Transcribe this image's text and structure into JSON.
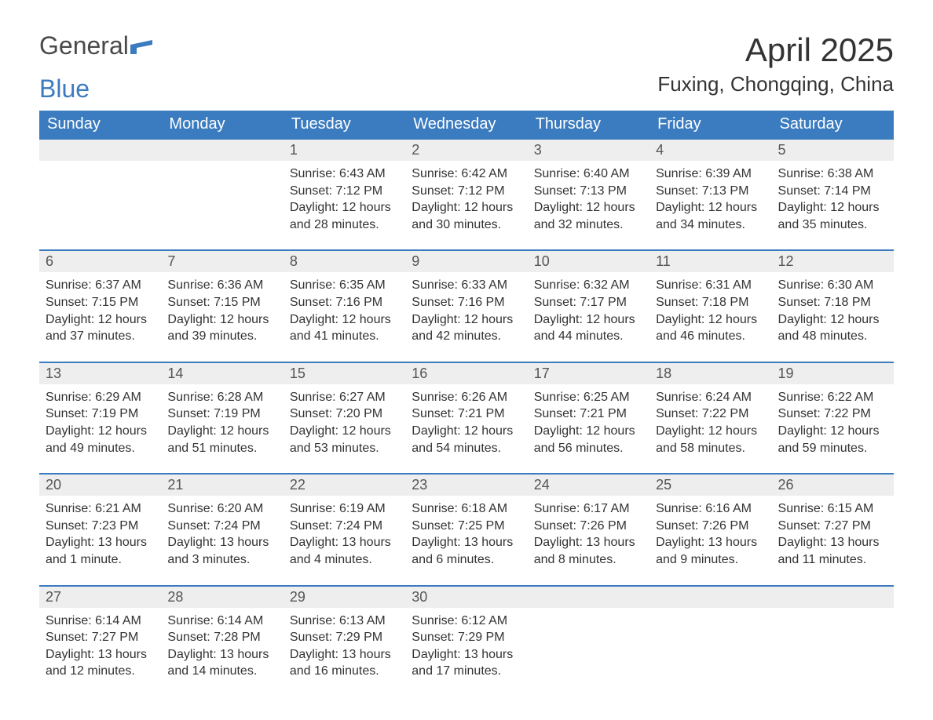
{
  "logo": {
    "text1": "General",
    "text2": "Blue",
    "shape_color": "#3b7bbf"
  },
  "header": {
    "month_title": "April 2025",
    "location": "Fuxing, Chongqing, China"
  },
  "colors": {
    "header_bg": "#3b7bbf",
    "header_fg": "#ffffff",
    "daynum_bg": "#eeeeee",
    "daynum_border": "#3b7bbf",
    "text": "#333333",
    "background": "#ffffff"
  },
  "typography": {
    "title_fontsize": 42,
    "location_fontsize": 26,
    "dayhead_fontsize": 20,
    "daynum_fontsize": 18,
    "body_fontsize": 16
  },
  "calendar": {
    "type": "table",
    "day_headers": [
      "Sunday",
      "Monday",
      "Tuesday",
      "Wednesday",
      "Thursday",
      "Friday",
      "Saturday"
    ],
    "weeks": [
      [
        null,
        null,
        {
          "n": "1",
          "sunrise": "Sunrise: 6:43 AM",
          "sunset": "Sunset: 7:12 PM",
          "daylight": "Daylight: 12 hours and 28 minutes."
        },
        {
          "n": "2",
          "sunrise": "Sunrise: 6:42 AM",
          "sunset": "Sunset: 7:12 PM",
          "daylight": "Daylight: 12 hours and 30 minutes."
        },
        {
          "n": "3",
          "sunrise": "Sunrise: 6:40 AM",
          "sunset": "Sunset: 7:13 PM",
          "daylight": "Daylight: 12 hours and 32 minutes."
        },
        {
          "n": "4",
          "sunrise": "Sunrise: 6:39 AM",
          "sunset": "Sunset: 7:13 PM",
          "daylight": "Daylight: 12 hours and 34 minutes."
        },
        {
          "n": "5",
          "sunrise": "Sunrise: 6:38 AM",
          "sunset": "Sunset: 7:14 PM",
          "daylight": "Daylight: 12 hours and 35 minutes."
        }
      ],
      [
        {
          "n": "6",
          "sunrise": "Sunrise: 6:37 AM",
          "sunset": "Sunset: 7:15 PM",
          "daylight": "Daylight: 12 hours and 37 minutes."
        },
        {
          "n": "7",
          "sunrise": "Sunrise: 6:36 AM",
          "sunset": "Sunset: 7:15 PM",
          "daylight": "Daylight: 12 hours and 39 minutes."
        },
        {
          "n": "8",
          "sunrise": "Sunrise: 6:35 AM",
          "sunset": "Sunset: 7:16 PM",
          "daylight": "Daylight: 12 hours and 41 minutes."
        },
        {
          "n": "9",
          "sunrise": "Sunrise: 6:33 AM",
          "sunset": "Sunset: 7:16 PM",
          "daylight": "Daylight: 12 hours and 42 minutes."
        },
        {
          "n": "10",
          "sunrise": "Sunrise: 6:32 AM",
          "sunset": "Sunset: 7:17 PM",
          "daylight": "Daylight: 12 hours and 44 minutes."
        },
        {
          "n": "11",
          "sunrise": "Sunrise: 6:31 AM",
          "sunset": "Sunset: 7:18 PM",
          "daylight": "Daylight: 12 hours and 46 minutes."
        },
        {
          "n": "12",
          "sunrise": "Sunrise: 6:30 AM",
          "sunset": "Sunset: 7:18 PM",
          "daylight": "Daylight: 12 hours and 48 minutes."
        }
      ],
      [
        {
          "n": "13",
          "sunrise": "Sunrise: 6:29 AM",
          "sunset": "Sunset: 7:19 PM",
          "daylight": "Daylight: 12 hours and 49 minutes."
        },
        {
          "n": "14",
          "sunrise": "Sunrise: 6:28 AM",
          "sunset": "Sunset: 7:19 PM",
          "daylight": "Daylight: 12 hours and 51 minutes."
        },
        {
          "n": "15",
          "sunrise": "Sunrise: 6:27 AM",
          "sunset": "Sunset: 7:20 PM",
          "daylight": "Daylight: 12 hours and 53 minutes."
        },
        {
          "n": "16",
          "sunrise": "Sunrise: 6:26 AM",
          "sunset": "Sunset: 7:21 PM",
          "daylight": "Daylight: 12 hours and 54 minutes."
        },
        {
          "n": "17",
          "sunrise": "Sunrise: 6:25 AM",
          "sunset": "Sunset: 7:21 PM",
          "daylight": "Daylight: 12 hours and 56 minutes."
        },
        {
          "n": "18",
          "sunrise": "Sunrise: 6:24 AM",
          "sunset": "Sunset: 7:22 PM",
          "daylight": "Daylight: 12 hours and 58 minutes."
        },
        {
          "n": "19",
          "sunrise": "Sunrise: 6:22 AM",
          "sunset": "Sunset: 7:22 PM",
          "daylight": "Daylight: 12 hours and 59 minutes."
        }
      ],
      [
        {
          "n": "20",
          "sunrise": "Sunrise: 6:21 AM",
          "sunset": "Sunset: 7:23 PM",
          "daylight": "Daylight: 13 hours and 1 minute."
        },
        {
          "n": "21",
          "sunrise": "Sunrise: 6:20 AM",
          "sunset": "Sunset: 7:24 PM",
          "daylight": "Daylight: 13 hours and 3 minutes."
        },
        {
          "n": "22",
          "sunrise": "Sunrise: 6:19 AM",
          "sunset": "Sunset: 7:24 PM",
          "daylight": "Daylight: 13 hours and 4 minutes."
        },
        {
          "n": "23",
          "sunrise": "Sunrise: 6:18 AM",
          "sunset": "Sunset: 7:25 PM",
          "daylight": "Daylight: 13 hours and 6 minutes."
        },
        {
          "n": "24",
          "sunrise": "Sunrise: 6:17 AM",
          "sunset": "Sunset: 7:26 PM",
          "daylight": "Daylight: 13 hours and 8 minutes."
        },
        {
          "n": "25",
          "sunrise": "Sunrise: 6:16 AM",
          "sunset": "Sunset: 7:26 PM",
          "daylight": "Daylight: 13 hours and 9 minutes."
        },
        {
          "n": "26",
          "sunrise": "Sunrise: 6:15 AM",
          "sunset": "Sunset: 7:27 PM",
          "daylight": "Daylight: 13 hours and 11 minutes."
        }
      ],
      [
        {
          "n": "27",
          "sunrise": "Sunrise: 6:14 AM",
          "sunset": "Sunset: 7:27 PM",
          "daylight": "Daylight: 13 hours and 12 minutes."
        },
        {
          "n": "28",
          "sunrise": "Sunrise: 6:14 AM",
          "sunset": "Sunset: 7:28 PM",
          "daylight": "Daylight: 13 hours and 14 minutes."
        },
        {
          "n": "29",
          "sunrise": "Sunrise: 6:13 AM",
          "sunset": "Sunset: 7:29 PM",
          "daylight": "Daylight: 13 hours and 16 minutes."
        },
        {
          "n": "30",
          "sunrise": "Sunrise: 6:12 AM",
          "sunset": "Sunset: 7:29 PM",
          "daylight": "Daylight: 13 hours and 17 minutes."
        },
        null,
        null,
        null
      ]
    ]
  }
}
